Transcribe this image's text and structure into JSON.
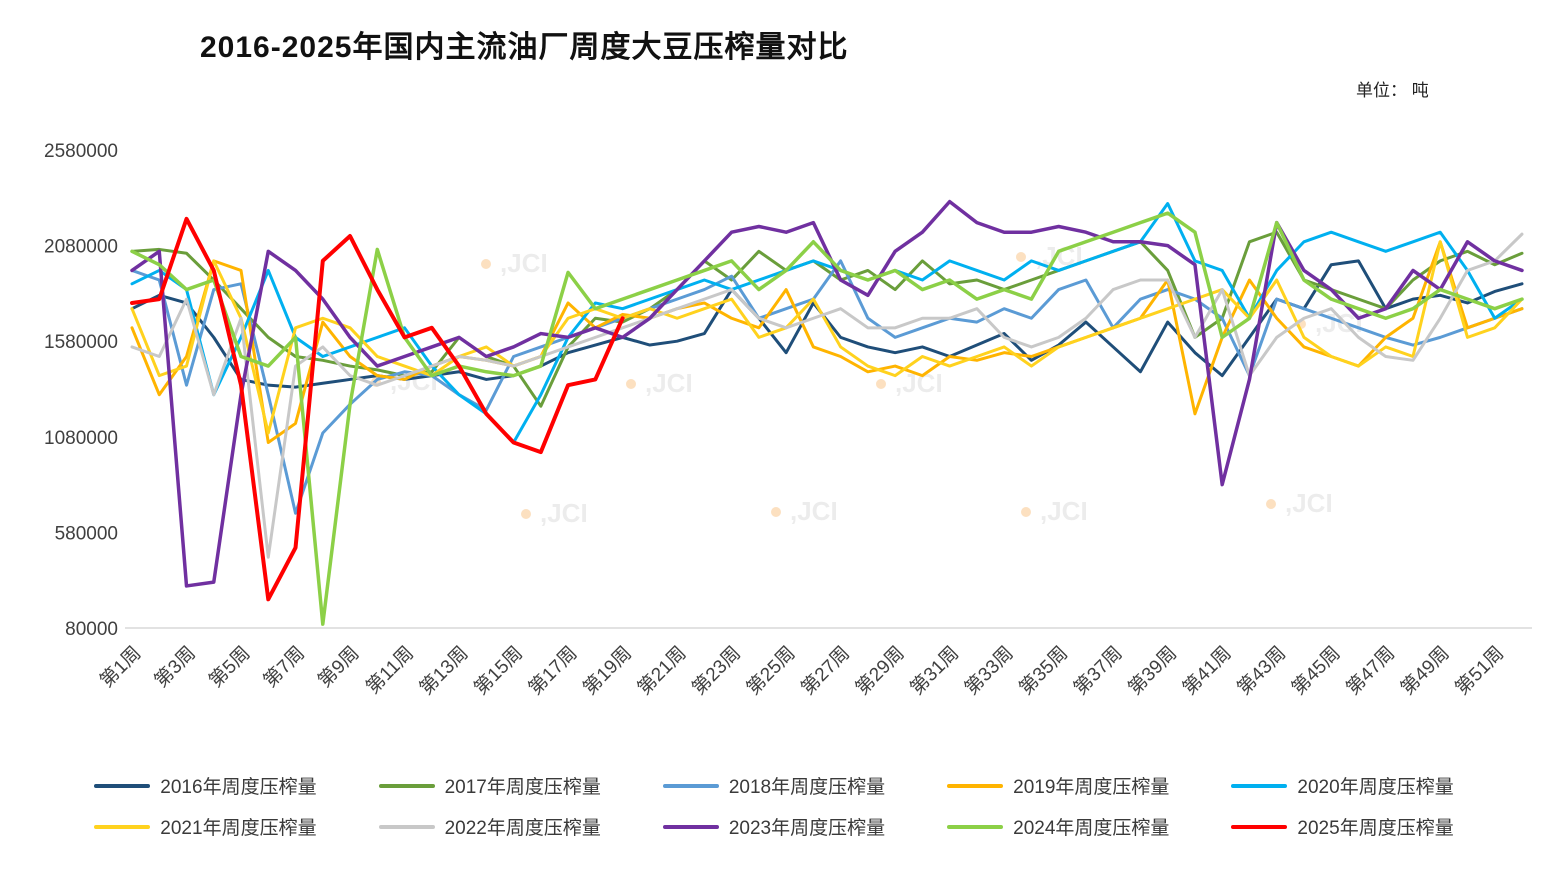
{
  "header": {
    "title": "2016-2025年国内主流油厂周度大豆压榨量对比",
    "unit_label": "单位： 吨"
  },
  "watermark": {
    "text": "JCI"
  },
  "chart_data": {
    "type": "line",
    "title": "2016-2025年国内主流油厂周度大豆压榨量对比",
    "xlabel": "",
    "ylabel": "吨",
    "ylim": [
      80000,
      2580000
    ],
    "yticks": [
      2580000,
      2080000,
      1580000,
      1080000,
      580000,
      80000
    ],
    "x_count": 52,
    "x_tick_labels": [
      "第1周",
      "第3周",
      "第5周",
      "第7周",
      "第9周",
      "第11周",
      "第13周",
      "第15周",
      "第17周",
      "第19周",
      "第21周",
      "第23周",
      "第25周",
      "第27周",
      "第29周",
      "第31周",
      "第33周",
      "第35周",
      "第37周",
      "第39周",
      "第41周",
      "第43周",
      "第45周",
      "第47周",
      "第49周",
      "第51周"
    ],
    "grid": false,
    "legend_position": "bottom",
    "series": [
      {
        "name": "2016年周度压榨量",
        "color": "#1F4E79",
        "width": 3,
        "values": [
          1750000,
          1820000,
          1780000,
          1600000,
          1380000,
          1350000,
          1340000,
          1360000,
          1380000,
          1400000,
          1380000,
          1400000,
          1420000,
          1380000,
          1400000,
          1450000,
          1520000,
          1560000,
          1600000,
          1560000,
          1580000,
          1620000,
          1850000,
          1700000,
          1520000,
          1780000,
          1600000,
          1550000,
          1520000,
          1550000,
          1500000,
          1560000,
          1620000,
          1480000,
          1560000,
          1680000,
          1550000,
          1420000,
          1680000,
          1520000,
          1400000,
          1600000,
          1800000,
          1750000,
          1980000,
          2000000,
          1750000,
          1800000,
          1820000,
          1780000,
          1840000,
          1880000
        ]
      },
      {
        "name": "2017年周度压榨量",
        "color": "#6A9E3B",
        "width": 3,
        "values": [
          2050000,
          2060000,
          2040000,
          1900000,
          1750000,
          1600000,
          1500000,
          1480000,
          1450000,
          1430000,
          1400000,
          1420000,
          1600000,
          1500000,
          1450000,
          1240000,
          1550000,
          1700000,
          1680000,
          1750000,
          1850000,
          2000000,
          1900000,
          2050000,
          1950000,
          2000000,
          1900000,
          1950000,
          1850000,
          2000000,
          1880000,
          1900000,
          1850000,
          1900000,
          1950000,
          2000000,
          2050000,
          2100000,
          1950000,
          1600000,
          1700000,
          2100000,
          2150000,
          1900000,
          1850000,
          1800000,
          1750000,
          1900000,
          2000000,
          2050000,
          1980000,
          2040000
        ]
      },
      {
        "name": "2018年周度压榨量",
        "color": "#5B9BD5",
        "width": 3,
        "values": [
          1950000,
          1900000,
          1350000,
          1850000,
          1880000,
          1300000,
          680000,
          1100000,
          1250000,
          1380000,
          1420000,
          1400000,
          1300000,
          1220000,
          1500000,
          1550000,
          1600000,
          1650000,
          1700000,
          1750000,
          1800000,
          1850000,
          1920000,
          1700000,
          1750000,
          1800000,
          2000000,
          1700000,
          1600000,
          1650000,
          1700000,
          1680000,
          1750000,
          1700000,
          1850000,
          1900000,
          1650000,
          1800000,
          1850000,
          1800000,
          1700000,
          1400000,
          1800000,
          1750000,
          1700000,
          1650000,
          1600000,
          1560000,
          1600000,
          1650000,
          1700000,
          1750000
        ]
      },
      {
        "name": "2019年周度压榨量",
        "color": "#FFB400",
        "width": 3,
        "values": [
          1650000,
          1300000,
          1500000,
          2000000,
          1950000,
          1050000,
          1150000,
          1680000,
          1500000,
          1400000,
          1380000,
          1450000,
          1500000,
          1480000,
          1450000,
          1500000,
          1780000,
          1650000,
          1720000,
          1700000,
          1750000,
          1780000,
          1700000,
          1650000,
          1850000,
          1550000,
          1500000,
          1420000,
          1450000,
          1400000,
          1500000,
          1480000,
          1520000,
          1500000,
          1550000,
          1600000,
          1650000,
          1700000,
          1900000,
          1200000,
          1600000,
          1900000,
          1700000,
          1550000,
          1500000,
          1450000,
          1600000,
          1700000,
          2100000,
          1650000,
          1700000,
          1750000
        ]
      },
      {
        "name": "2020年周度压榨量",
        "color": "#00B0F0",
        "width": 3,
        "values": [
          1880000,
          1950000,
          1850000,
          1300000,
          1600000,
          1950000,
          1600000,
          1500000,
          1550000,
          1600000,
          1650000,
          1450000,
          1300000,
          1200000,
          1050000,
          1300000,
          1600000,
          1780000,
          1750000,
          1800000,
          1850000,
          1900000,
          1850000,
          1900000,
          1950000,
          2000000,
          1950000,
          1900000,
          1950000,
          1900000,
          2000000,
          1950000,
          1900000,
          2000000,
          1950000,
          2000000,
          2050000,
          2100000,
          2300000,
          2000000,
          1950000,
          1700000,
          1950000,
          2100000,
          2150000,
          2100000,
          2050000,
          2100000,
          2150000,
          1950000,
          1700000,
          1800000
        ]
      },
      {
        "name": "2021年周度压榨量",
        "color": "#FFD21E",
        "width": 3,
        "values": [
          1750000,
          1400000,
          1450000,
          2000000,
          1700000,
          1100000,
          1650000,
          1700000,
          1650000,
          1500000,
          1450000,
          1400000,
          1500000,
          1550000,
          1450000,
          1500000,
          1700000,
          1750000,
          1700000,
          1750000,
          1700000,
          1750000,
          1800000,
          1600000,
          1650000,
          1800000,
          1550000,
          1450000,
          1400000,
          1500000,
          1450000,
          1500000,
          1550000,
          1450000,
          1550000,
          1600000,
          1650000,
          1700000,
          1750000,
          1800000,
          1850000,
          1700000,
          1900000,
          1600000,
          1500000,
          1450000,
          1550000,
          1500000,
          2100000,
          1600000,
          1650000,
          1800000
        ]
      },
      {
        "name": "2022年周度压榨量",
        "color": "#C8C8C8",
        "width": 3,
        "values": [
          1550000,
          1500000,
          1800000,
          1300000,
          1700000,
          450000,
          1450000,
          1550000,
          1400000,
          1350000,
          1400000,
          1450000,
          1500000,
          1480000,
          1450000,
          1500000,
          1550000,
          1600000,
          1650000,
          1700000,
          1750000,
          1800000,
          1850000,
          1700000,
          1650000,
          1700000,
          1750000,
          1650000,
          1650000,
          1700000,
          1700000,
          1750000,
          1600000,
          1550000,
          1600000,
          1700000,
          1850000,
          1900000,
          1900000,
          1600000,
          1850000,
          1400000,
          1600000,
          1700000,
          1750000,
          1600000,
          1500000,
          1480000,
          1700000,
          1950000,
          2000000,
          2140000
        ]
      },
      {
        "name": "2023年周度压榨量",
        "color": "#7030A0",
        "width": 3.5,
        "values": [
          1950000,
          2050000,
          300000,
          320000,
          1300000,
          2050000,
          1950000,
          1800000,
          1600000,
          1450000,
          1500000,
          1550000,
          1600000,
          1500000,
          1550000,
          1620000,
          1600000,
          1650000,
          1600000,
          1700000,
          1850000,
          2000000,
          2150000,
          2180000,
          2150000,
          2200000,
          1900000,
          1820000,
          2050000,
          2150000,
          2310000,
          2200000,
          2150000,
          2150000,
          2180000,
          2150000,
          2100000,
          2100000,
          2080000,
          1980000,
          830000,
          1380000,
          2200000,
          1950000,
          1850000,
          1700000,
          1750000,
          1950000,
          1850000,
          2100000,
          2000000,
          1950000
        ]
      },
      {
        "name": "2024年周度压榨量",
        "color": "#8CD047",
        "width": 3.5,
        "values": [
          2050000,
          1980000,
          1850000,
          1900000,
          1500000,
          1450000,
          1600000,
          100000,
          1250000,
          2060000,
          1600000,
          1400000,
          1450000,
          1420000,
          1400000,
          1450000,
          1940000,
          1750000,
          1800000,
          1850000,
          1900000,
          1950000,
          2000000,
          1850000,
          1950000,
          2100000,
          1950000,
          1900000,
          1950000,
          1850000,
          1900000,
          1800000,
          1850000,
          1800000,
          2050000,
          2100000,
          2150000,
          2200000,
          2250000,
          2150000,
          1600000,
          1700000,
          2200000,
          1900000,
          1800000,
          1750000,
          1700000,
          1750000,
          1850000,
          1800000,
          1750000,
          1800000
        ]
      },
      {
        "name": "2025年周度压榨量",
        "color": "#FF0000",
        "width": 4,
        "values": [
          1780000,
          1800000,
          2220000,
          1950000,
          1350000,
          230000,
          500000,
          2000000,
          2130000,
          1850000,
          1600000,
          1650000,
          1450000,
          1200000,
          1050000,
          1000000,
          1350000,
          1380000,
          1700000
        ]
      }
    ]
  }
}
